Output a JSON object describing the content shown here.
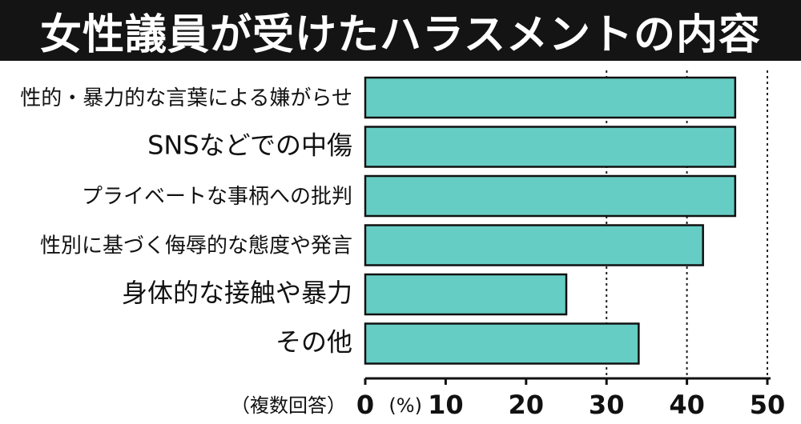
{
  "title": "女性議員が受けたハラスメントの内容",
  "chart_data": {
    "type": "bar",
    "orientation": "horizontal",
    "title": "女性議員が受けたハラスメントの内容",
    "categories": [
      "性的・暴力的な言葉による嫌がらせ",
      "SNSなどでの中傷",
      "プライベートな事柄への批判",
      "性別に基づく侮辱的な態度や発言",
      "身体的な接触や暴力",
      "その他"
    ],
    "values": [
      46,
      46,
      46,
      42,
      25,
      34
    ],
    "xlim": [
      0,
      50
    ],
    "x_ticks": [
      "0",
      "10",
      "20",
      "30",
      "40",
      "50"
    ],
    "unit_label": "(%)",
    "note": "（複数回答）",
    "grid": "dotted vertical lines at 30, 40, 50",
    "colors": {
      "bar": "#66cdc4",
      "bar_edge": "#111111",
      "title_bg": "#141414"
    }
  }
}
